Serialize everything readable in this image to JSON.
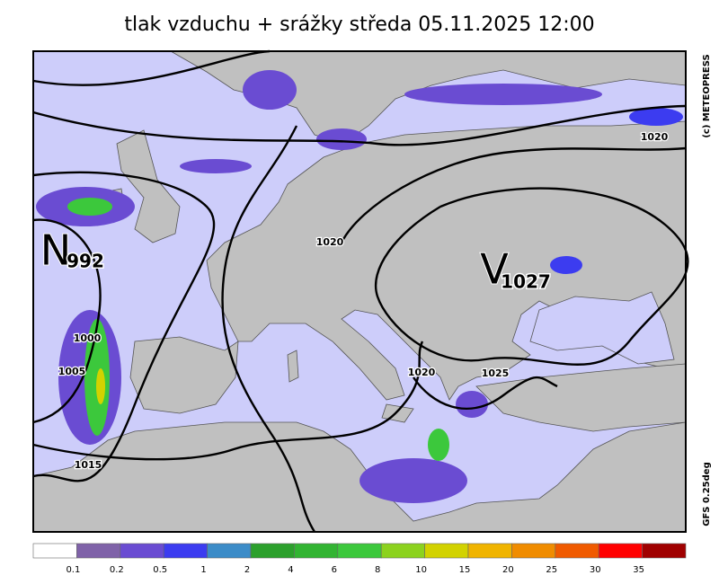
{
  "title": "tlak vzduchu + srážky  středa 05.11.2025 12:00",
  "credit": "(c) METEOPRESS",
  "model": "GFS 0.25deg",
  "pressure_centers": [
    {
      "letter": "N",
      "value": "992"
    },
    {
      "letter": "V",
      "value": "1027"
    }
  ],
  "isobar_labels": [
    "1020",
    "1020",
    "1000",
    "1005",
    "1015",
    "1020",
    "1025"
  ],
  "legend": {
    "colors": [
      "#ffffff",
      "#7f62a8",
      "#6a4cd2",
      "#3c3cf0",
      "#3c8cc8",
      "#2ca02c",
      "#32b432",
      "#3cc83c",
      "#8cd21e",
      "#d2d200",
      "#f0b400",
      "#f08c00",
      "#f05a00",
      "#ff0000",
      "#a00000"
    ],
    "labels": [
      0.1,
      0.2,
      0.5,
      1,
      2,
      4,
      6,
      8,
      10,
      15,
      20,
      25,
      30,
      35
    ]
  }
}
